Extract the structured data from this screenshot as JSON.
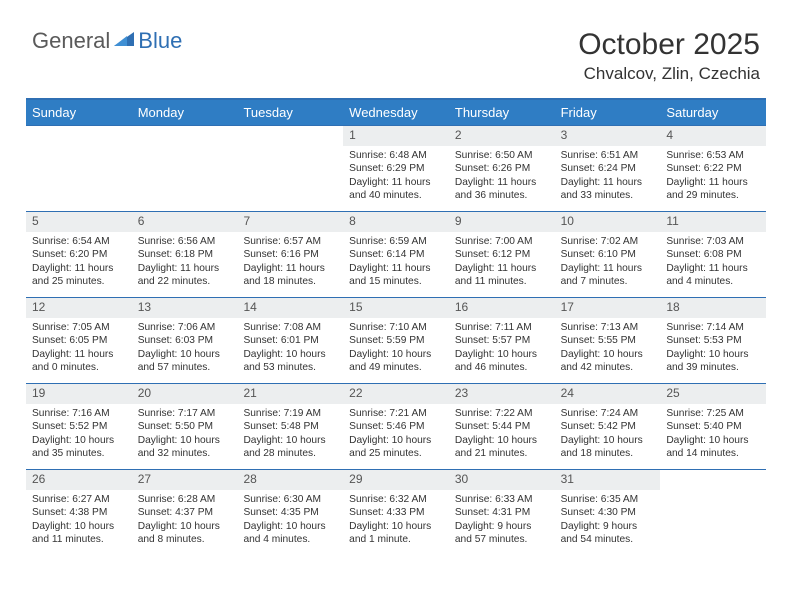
{
  "logo": {
    "general": "General",
    "blue": "Blue"
  },
  "title": "October 2025",
  "location": "Chvalcov, Zlin, Czechia",
  "colors": {
    "header_bg": "#2f7dc4",
    "border": "#2f6fb3",
    "daynum_bg": "#eceeef",
    "text": "#333333"
  },
  "day_headers": [
    "Sunday",
    "Monday",
    "Tuesday",
    "Wednesday",
    "Thursday",
    "Friday",
    "Saturday"
  ],
  "weeks": [
    [
      {
        "n": "",
        "sr": "",
        "ss": "",
        "dl": ""
      },
      {
        "n": "",
        "sr": "",
        "ss": "",
        "dl": ""
      },
      {
        "n": "",
        "sr": "",
        "ss": "",
        "dl": ""
      },
      {
        "n": "1",
        "sr": "Sunrise: 6:48 AM",
        "ss": "Sunset: 6:29 PM",
        "dl": "Daylight: 11 hours and 40 minutes."
      },
      {
        "n": "2",
        "sr": "Sunrise: 6:50 AM",
        "ss": "Sunset: 6:26 PM",
        "dl": "Daylight: 11 hours and 36 minutes."
      },
      {
        "n": "3",
        "sr": "Sunrise: 6:51 AM",
        "ss": "Sunset: 6:24 PM",
        "dl": "Daylight: 11 hours and 33 minutes."
      },
      {
        "n": "4",
        "sr": "Sunrise: 6:53 AM",
        "ss": "Sunset: 6:22 PM",
        "dl": "Daylight: 11 hours and 29 minutes."
      }
    ],
    [
      {
        "n": "5",
        "sr": "Sunrise: 6:54 AM",
        "ss": "Sunset: 6:20 PM",
        "dl": "Daylight: 11 hours and 25 minutes."
      },
      {
        "n": "6",
        "sr": "Sunrise: 6:56 AM",
        "ss": "Sunset: 6:18 PM",
        "dl": "Daylight: 11 hours and 22 minutes."
      },
      {
        "n": "7",
        "sr": "Sunrise: 6:57 AM",
        "ss": "Sunset: 6:16 PM",
        "dl": "Daylight: 11 hours and 18 minutes."
      },
      {
        "n": "8",
        "sr": "Sunrise: 6:59 AM",
        "ss": "Sunset: 6:14 PM",
        "dl": "Daylight: 11 hours and 15 minutes."
      },
      {
        "n": "9",
        "sr": "Sunrise: 7:00 AM",
        "ss": "Sunset: 6:12 PM",
        "dl": "Daylight: 11 hours and 11 minutes."
      },
      {
        "n": "10",
        "sr": "Sunrise: 7:02 AM",
        "ss": "Sunset: 6:10 PM",
        "dl": "Daylight: 11 hours and 7 minutes."
      },
      {
        "n": "11",
        "sr": "Sunrise: 7:03 AM",
        "ss": "Sunset: 6:08 PM",
        "dl": "Daylight: 11 hours and 4 minutes."
      }
    ],
    [
      {
        "n": "12",
        "sr": "Sunrise: 7:05 AM",
        "ss": "Sunset: 6:05 PM",
        "dl": "Daylight: 11 hours and 0 minutes."
      },
      {
        "n": "13",
        "sr": "Sunrise: 7:06 AM",
        "ss": "Sunset: 6:03 PM",
        "dl": "Daylight: 10 hours and 57 minutes."
      },
      {
        "n": "14",
        "sr": "Sunrise: 7:08 AM",
        "ss": "Sunset: 6:01 PM",
        "dl": "Daylight: 10 hours and 53 minutes."
      },
      {
        "n": "15",
        "sr": "Sunrise: 7:10 AM",
        "ss": "Sunset: 5:59 PM",
        "dl": "Daylight: 10 hours and 49 minutes."
      },
      {
        "n": "16",
        "sr": "Sunrise: 7:11 AM",
        "ss": "Sunset: 5:57 PM",
        "dl": "Daylight: 10 hours and 46 minutes."
      },
      {
        "n": "17",
        "sr": "Sunrise: 7:13 AM",
        "ss": "Sunset: 5:55 PM",
        "dl": "Daylight: 10 hours and 42 minutes."
      },
      {
        "n": "18",
        "sr": "Sunrise: 7:14 AM",
        "ss": "Sunset: 5:53 PM",
        "dl": "Daylight: 10 hours and 39 minutes."
      }
    ],
    [
      {
        "n": "19",
        "sr": "Sunrise: 7:16 AM",
        "ss": "Sunset: 5:52 PM",
        "dl": "Daylight: 10 hours and 35 minutes."
      },
      {
        "n": "20",
        "sr": "Sunrise: 7:17 AM",
        "ss": "Sunset: 5:50 PM",
        "dl": "Daylight: 10 hours and 32 minutes."
      },
      {
        "n": "21",
        "sr": "Sunrise: 7:19 AM",
        "ss": "Sunset: 5:48 PM",
        "dl": "Daylight: 10 hours and 28 minutes."
      },
      {
        "n": "22",
        "sr": "Sunrise: 7:21 AM",
        "ss": "Sunset: 5:46 PM",
        "dl": "Daylight: 10 hours and 25 minutes."
      },
      {
        "n": "23",
        "sr": "Sunrise: 7:22 AM",
        "ss": "Sunset: 5:44 PM",
        "dl": "Daylight: 10 hours and 21 minutes."
      },
      {
        "n": "24",
        "sr": "Sunrise: 7:24 AM",
        "ss": "Sunset: 5:42 PM",
        "dl": "Daylight: 10 hours and 18 minutes."
      },
      {
        "n": "25",
        "sr": "Sunrise: 7:25 AM",
        "ss": "Sunset: 5:40 PM",
        "dl": "Daylight: 10 hours and 14 minutes."
      }
    ],
    [
      {
        "n": "26",
        "sr": "Sunrise: 6:27 AM",
        "ss": "Sunset: 4:38 PM",
        "dl": "Daylight: 10 hours and 11 minutes."
      },
      {
        "n": "27",
        "sr": "Sunrise: 6:28 AM",
        "ss": "Sunset: 4:37 PM",
        "dl": "Daylight: 10 hours and 8 minutes."
      },
      {
        "n": "28",
        "sr": "Sunrise: 6:30 AM",
        "ss": "Sunset: 4:35 PM",
        "dl": "Daylight: 10 hours and 4 minutes."
      },
      {
        "n": "29",
        "sr": "Sunrise: 6:32 AM",
        "ss": "Sunset: 4:33 PM",
        "dl": "Daylight: 10 hours and 1 minute."
      },
      {
        "n": "30",
        "sr": "Sunrise: 6:33 AM",
        "ss": "Sunset: 4:31 PM",
        "dl": "Daylight: 9 hours and 57 minutes."
      },
      {
        "n": "31",
        "sr": "Sunrise: 6:35 AM",
        "ss": "Sunset: 4:30 PM",
        "dl": "Daylight: 9 hours and 54 minutes."
      },
      {
        "n": "",
        "sr": "",
        "ss": "",
        "dl": ""
      }
    ]
  ]
}
